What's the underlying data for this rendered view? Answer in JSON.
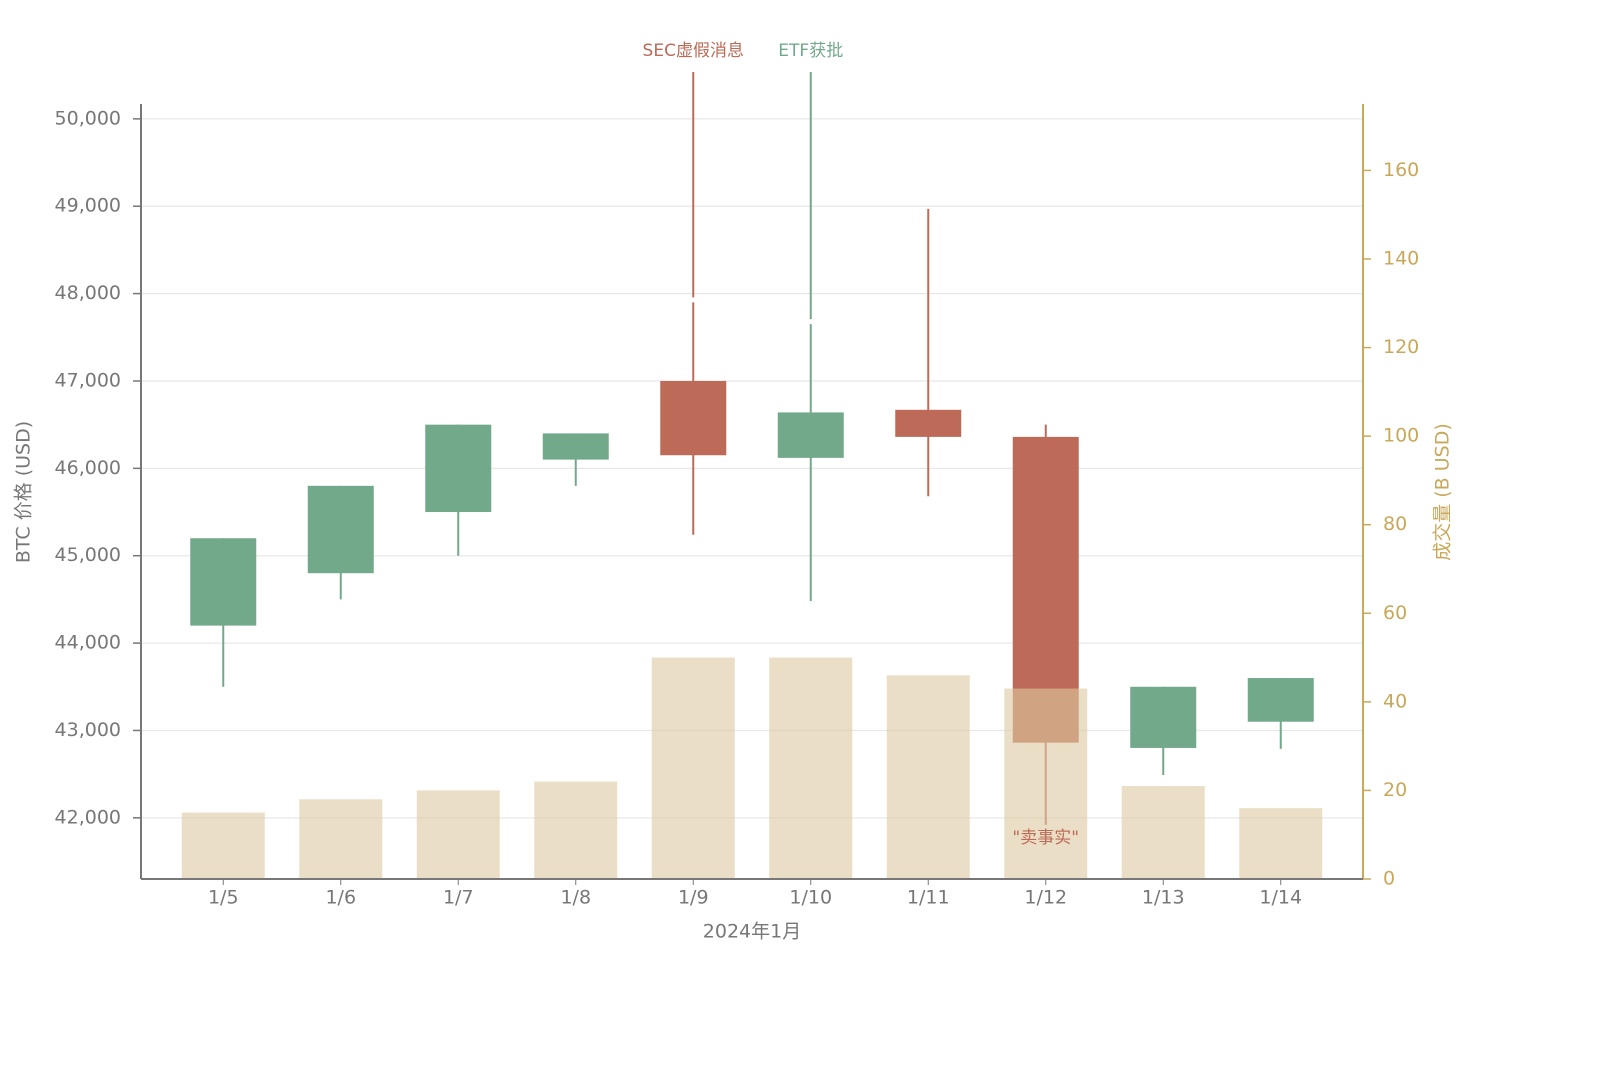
{
  "chart_data": {
    "type": "candlestick",
    "x_label": "2024年1月",
    "y_label": "BTC 价格 (USD)",
    "y2_label": "成交量 (B USD)",
    "categories": [
      "1/5",
      "1/6",
      "1/7",
      "1/8",
      "1/9",
      "1/10",
      "1/11",
      "1/12",
      "1/13",
      "1/14"
    ],
    "open": [
      44200,
      44800,
      45500,
      46100,
      47000,
      46120,
      46670,
      46360,
      42800,
      43100
    ],
    "high": [
      45200,
      45800,
      46500,
      46400,
      47900,
      47650,
      48970,
      46500,
      43500,
      43600
    ],
    "low": [
      43500,
      44500,
      45000,
      45800,
      45240,
      44480,
      45680,
      41920,
      42490,
      42790
    ],
    "close": [
      45200,
      45800,
      46500,
      46400,
      46150,
      46640,
      46360,
      42860,
      43500,
      43600
    ],
    "up_color": "#72a98a",
    "down_color": "#bd6b58",
    "series": [
      {
        "name": "成交量",
        "axis": "y2",
        "color": "#dcc9a0",
        "values": [
          15,
          18,
          20,
          22,
          50,
          50,
          46,
          43,
          21,
          16
        ]
      }
    ],
    "annotations": [
      {
        "text": "SEC虚假消息",
        "x": "1/9",
        "position": "top"
      },
      {
        "text": "ETF获批",
        "x": "1/10",
        "position": "top"
      },
      {
        "text": "\"卖事实\"",
        "x": "1/12",
        "position": "bottom"
      }
    ],
    "ylim": [
      41300,
      50170
    ],
    "yticks": [
      {
        "value": 42000,
        "label": "42,000"
      },
      {
        "value": 43000,
        "label": "43,000"
      },
      {
        "value": 44000,
        "label": "44,000"
      },
      {
        "value": 45000,
        "label": "45,000"
      },
      {
        "value": 46000,
        "label": "46,000"
      },
      {
        "value": 47000,
        "label": "47,000"
      },
      {
        "value": 48000,
        "label": "48,000"
      },
      {
        "value": 49000,
        "label": "49,000"
      },
      {
        "value": 50000,
        "label": "50,000"
      }
    ],
    "y2lim": [
      0,
      175
    ],
    "y2ticks": [
      0,
      20,
      40,
      60,
      80,
      100,
      120,
      140,
      160
    ],
    "grid": true
  }
}
